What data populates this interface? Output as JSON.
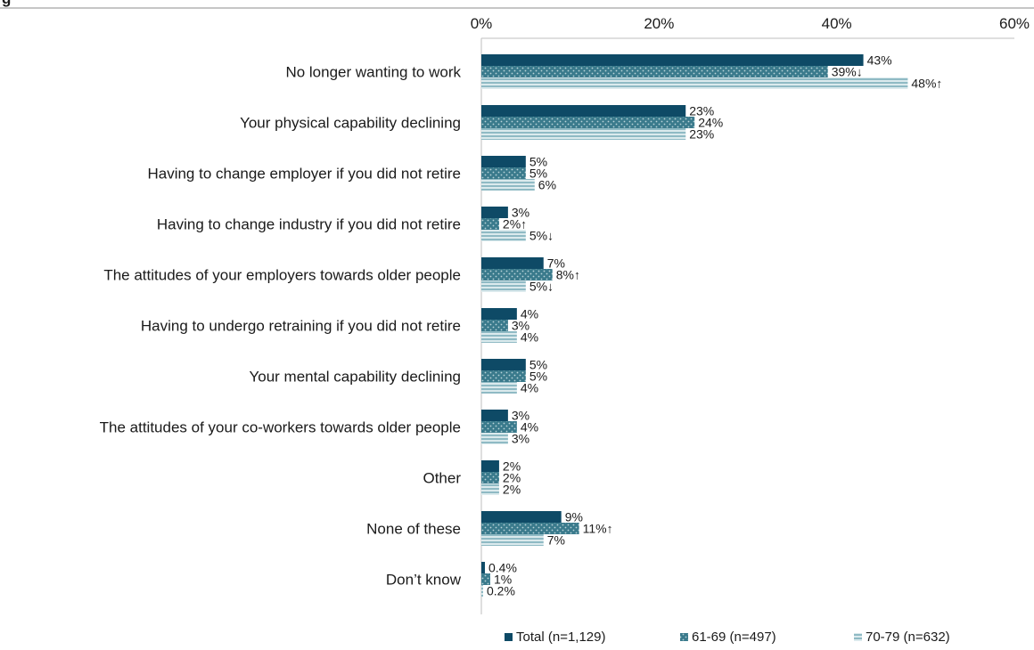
{
  "chart_data": {
    "type": "bar",
    "orientation": "horizontal",
    "title": "",
    "xlabel": "",
    "ylabel": "",
    "xlim": [
      0,
      60
    ],
    "x_ticks": [
      "0%",
      "20%",
      "40%",
      "60%"
    ],
    "x_tick_values": [
      0,
      20,
      40,
      60
    ],
    "grid": false,
    "legend_position": "bottom",
    "categories": [
      "No longer wanting to work",
      "Your physical capability declining",
      "Having to change employer if you did not retire",
      "Having to change industry if you did not retire",
      "The attitudes of your employers towards older people",
      "Having to undergo retraining if you did not retire",
      "Your mental capability declining",
      "The attitudes of your co-workers towards older people",
      "Other",
      "None of these",
      "Don’t know"
    ],
    "series": [
      {
        "name": "Total (n=1,129)",
        "color": "#0e4a66",
        "pattern": "solid",
        "values": [
          43,
          23,
          5,
          3,
          7,
          4,
          5,
          3,
          2,
          9,
          0.4
        ],
        "labels": [
          "43%",
          "23%",
          "5%",
          "3%",
          "7%",
          "4%",
          "5%",
          "3%",
          "2%",
          "9%",
          "0.4%"
        ]
      },
      {
        "name": "61-69 (n=497)",
        "color": "#3a7a8c",
        "pattern": "dotted",
        "values": [
          39,
          24,
          5,
          2,
          8,
          3,
          5,
          4,
          2,
          11,
          1
        ],
        "labels": [
          "39%↓",
          "24%",
          "5%",
          "2%↑",
          "8%↑",
          "3%",
          "5%",
          "4%",
          "2%",
          "11%↑",
          "1%"
        ]
      },
      {
        "name": "70-79 (n=632)",
        "color": "#9ec4cc",
        "pattern": "striped",
        "values": [
          48,
          23,
          6,
          5,
          5,
          4,
          4,
          3,
          2,
          7,
          0.2
        ],
        "labels": [
          "48%↑",
          "23%",
          "6%",
          "5%↓",
          "5%↓",
          "4%",
          "4%",
          "3%",
          "2%",
          "7%",
          "0.2%"
        ]
      }
    ]
  },
  "header_fragment": "g"
}
